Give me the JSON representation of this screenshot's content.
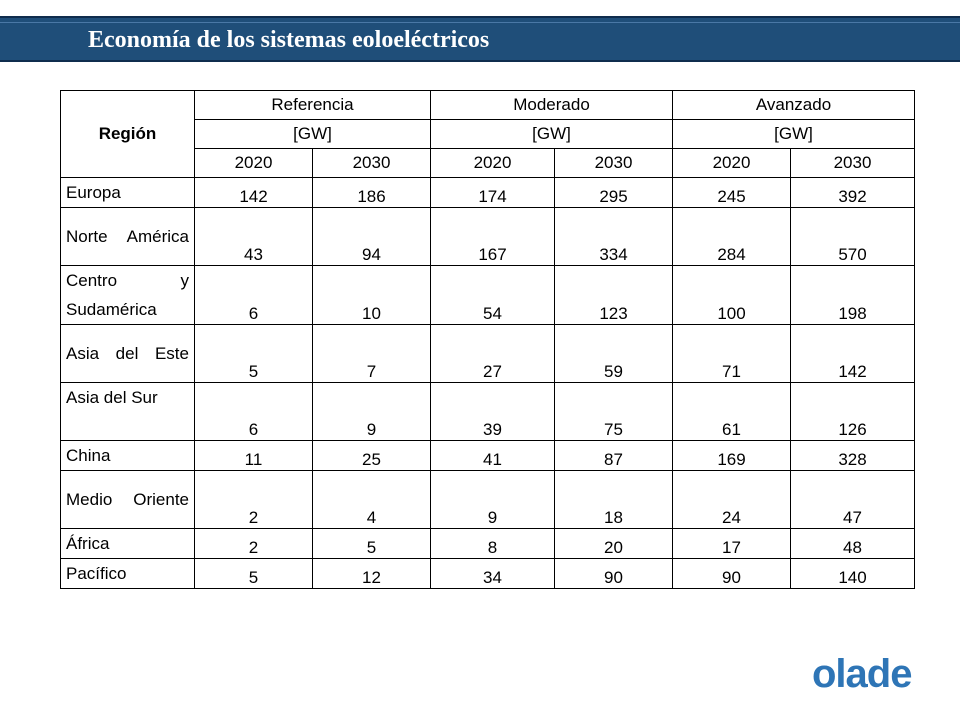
{
  "header": {
    "title": "Economía de los sistemas eoloeléctricos",
    "bar_color": "#1f4e79"
  },
  "table": {
    "region_header": "Región",
    "scenarios": [
      {
        "name": "Referencia",
        "unit": "[GW]"
      },
      {
        "name": "Moderado",
        "unit": "[GW]"
      },
      {
        "name": "Avanzado",
        "unit": "[GW]"
      }
    ],
    "years": [
      "2020",
      "2030",
      "2020",
      "2030",
      "2020",
      "2030"
    ],
    "rows": [
      {
        "region": "Europa",
        "values": [
          "142",
          "186",
          "174",
          "295",
          "245",
          "392"
        ]
      },
      {
        "region": "Norte América",
        "values": [
          "43",
          "94",
          "167",
          "334",
          "284",
          "570"
        ]
      },
      {
        "region": "Centro y Sudamérica",
        "values": [
          "6",
          "10",
          "54",
          "123",
          "100",
          "198"
        ]
      },
      {
        "region": "Asia del Este",
        "values": [
          "5",
          "7",
          "27",
          "59",
          "71",
          "142"
        ]
      },
      {
        "region": "Asia del Sur",
        "values": [
          "6",
          "9",
          "39",
          "75",
          "61",
          "126"
        ]
      },
      {
        "region": "China",
        "values": [
          "11",
          "25",
          "41",
          "87",
          "169",
          "328"
        ]
      },
      {
        "region": "Medio Oriente",
        "values": [
          "2",
          "4",
          "9",
          "18",
          "24",
          "47"
        ]
      },
      {
        "region": "África",
        "values": [
          "2",
          "5",
          "8",
          "20",
          "17",
          "48"
        ]
      },
      {
        "region": "Pacífico",
        "values": [
          "5",
          "12",
          "34",
          "90",
          "90",
          "140"
        ]
      }
    ]
  },
  "logo": {
    "text": "olade",
    "color": "#2e75b6",
    "icon": "olade-logo"
  }
}
